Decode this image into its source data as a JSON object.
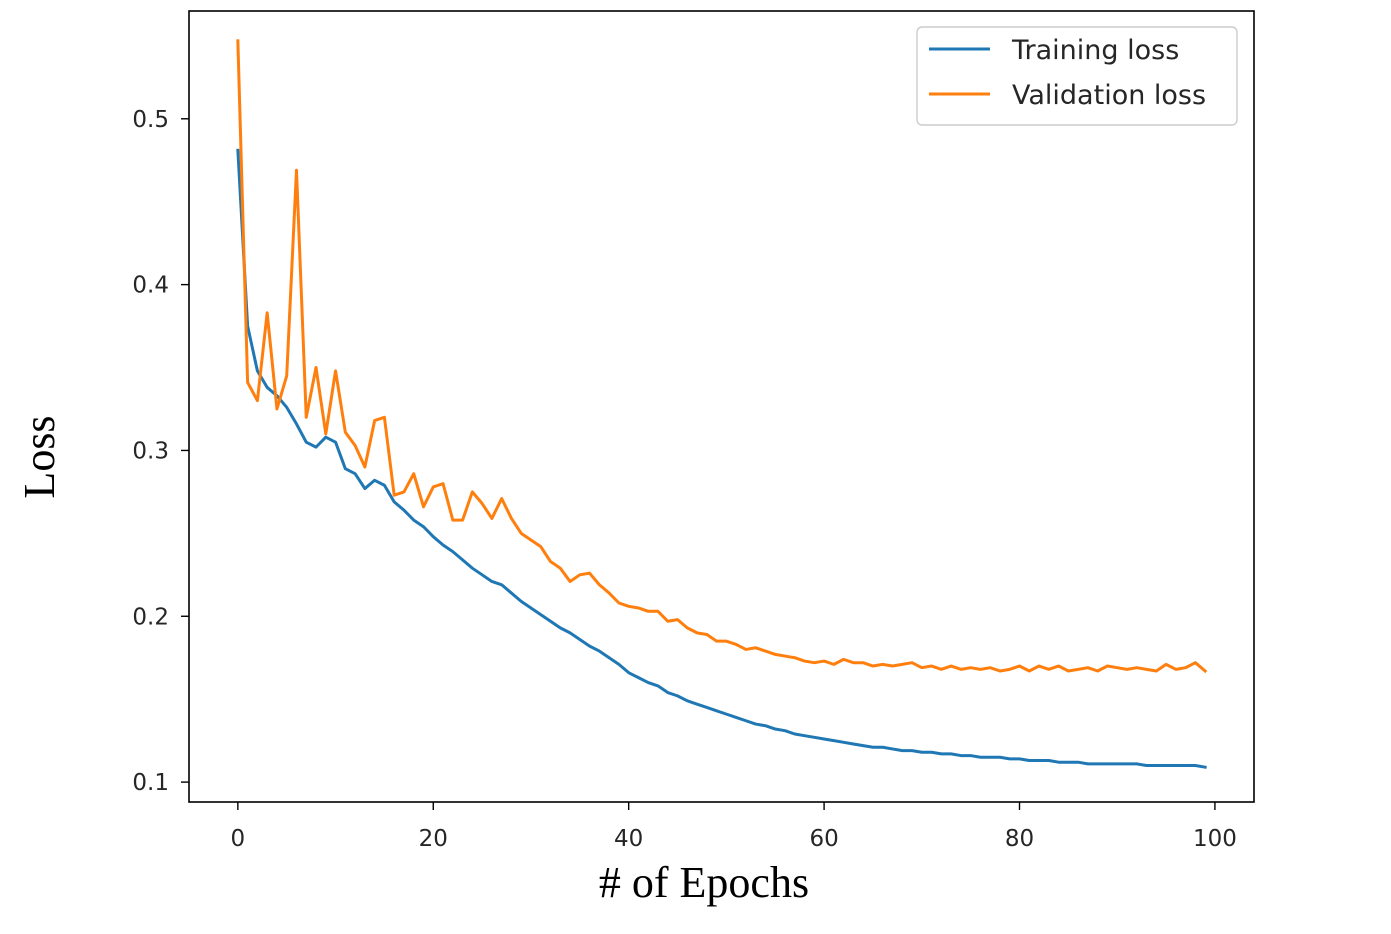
{
  "chart_data": {
    "type": "line",
    "title": "",
    "xlabel": "# of Epochs",
    "ylabel": "Loss",
    "xlim": [
      -5,
      104
    ],
    "ylim": [
      0.088,
      0.565
    ],
    "x_ticks": [
      0,
      20,
      40,
      60,
      80,
      100
    ],
    "y_ticks": [
      0.1,
      0.2,
      0.3,
      0.4,
      0.5
    ],
    "x_tick_labels": [
      "0",
      "20",
      "40",
      "60",
      "80",
      "100"
    ],
    "y_tick_labels": [
      "0.1",
      "0.2",
      "0.3",
      "0.4",
      "0.5"
    ],
    "grid": false,
    "legend_position": "top-right",
    "x": [
      0,
      1,
      2,
      3,
      4,
      5,
      6,
      7,
      8,
      9,
      10,
      11,
      12,
      13,
      14,
      15,
      16,
      17,
      18,
      19,
      20,
      21,
      22,
      23,
      24,
      25,
      26,
      27,
      28,
      29,
      30,
      31,
      32,
      33,
      34,
      35,
      36,
      37,
      38,
      39,
      40,
      41,
      42,
      43,
      44,
      45,
      46,
      47,
      48,
      49,
      50,
      51,
      52,
      53,
      54,
      55,
      56,
      57,
      58,
      59,
      60,
      61,
      62,
      63,
      64,
      65,
      66,
      67,
      68,
      69,
      70,
      71,
      72,
      73,
      74,
      75,
      76,
      77,
      78,
      79,
      80,
      81,
      82,
      83,
      84,
      85,
      86,
      87,
      88,
      89,
      90,
      91,
      92,
      93,
      94,
      95,
      96,
      97,
      98,
      99
    ],
    "series": [
      {
        "name": "Training loss",
        "color": "#1f77b4",
        "values": [
          0.481,
          0.375,
          0.348,
          0.338,
          0.333,
          0.326,
          0.316,
          0.305,
          0.302,
          0.308,
          0.305,
          0.289,
          0.286,
          0.277,
          0.282,
          0.279,
          0.269,
          0.264,
          0.258,
          0.254,
          0.248,
          0.243,
          0.239,
          0.234,
          0.229,
          0.225,
          0.221,
          0.219,
          0.214,
          0.209,
          0.205,
          0.201,
          0.197,
          0.193,
          0.19,
          0.186,
          0.182,
          0.179,
          0.175,
          0.171,
          0.166,
          0.163,
          0.16,
          0.158,
          0.154,
          0.152,
          0.149,
          0.147,
          0.145,
          0.143,
          0.141,
          0.139,
          0.137,
          0.135,
          0.134,
          0.132,
          0.131,
          0.129,
          0.128,
          0.127,
          0.126,
          0.125,
          0.124,
          0.123,
          0.122,
          0.121,
          0.121,
          0.12,
          0.119,
          0.119,
          0.118,
          0.118,
          0.117,
          0.117,
          0.116,
          0.116,
          0.115,
          0.115,
          0.115,
          0.114,
          0.114,
          0.113,
          0.113,
          0.113,
          0.112,
          0.112,
          0.112,
          0.111,
          0.111,
          0.111,
          0.111,
          0.111,
          0.111,
          0.11,
          0.11,
          0.11,
          0.11,
          0.11,
          0.11,
          0.109
        ]
      },
      {
        "name": "Validation loss",
        "color": "#ff7f0e",
        "values": [
          0.547,
          0.341,
          0.33,
          0.383,
          0.325,
          0.345,
          0.469,
          0.32,
          0.35,
          0.31,
          0.348,
          0.311,
          0.303,
          0.29,
          0.318,
          0.32,
          0.273,
          0.275,
          0.286,
          0.266,
          0.278,
          0.28,
          0.258,
          0.258,
          0.275,
          0.268,
          0.259,
          0.271,
          0.259,
          0.25,
          0.246,
          0.242,
          0.233,
          0.229,
          0.221,
          0.225,
          0.226,
          0.219,
          0.214,
          0.208,
          0.206,
          0.205,
          0.203,
          0.203,
          0.197,
          0.198,
          0.193,
          0.19,
          0.189,
          0.185,
          0.185,
          0.183,
          0.18,
          0.181,
          0.179,
          0.177,
          0.176,
          0.175,
          0.173,
          0.172,
          0.173,
          0.171,
          0.174,
          0.172,
          0.172,
          0.17,
          0.171,
          0.17,
          0.171,
          0.172,
          0.169,
          0.17,
          0.168,
          0.17,
          0.168,
          0.169,
          0.168,
          0.169,
          0.167,
          0.168,
          0.17,
          0.167,
          0.17,
          0.168,
          0.17,
          0.167,
          0.168,
          0.169,
          0.167,
          0.17,
          0.169,
          0.168,
          0.169,
          0.168,
          0.167,
          0.171,
          0.168,
          0.169,
          0.172,
          0.167
        ]
      }
    ]
  }
}
